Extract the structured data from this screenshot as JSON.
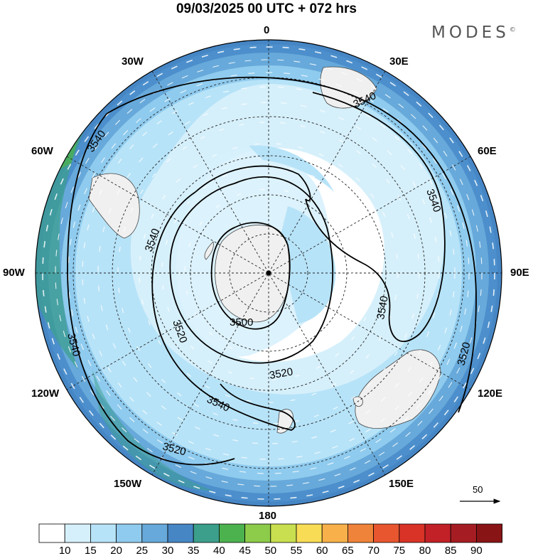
{
  "title": "09/03/2025  00 UTC  + 072 hrs",
  "brand": {
    "name": "MODES",
    "mark": "©"
  },
  "longitude_labels": {
    "lon_0": "0",
    "lon_30e": "30E",
    "lon_60e": "60E",
    "lon_90e": "90E",
    "lon_120e": "120E",
    "lon_150e": "150E",
    "lon_180": "180",
    "lon_150w": "150W",
    "lon_120w": "120W",
    "lon_90w": "90W",
    "lon_60w": "60W",
    "lon_30w": "30W"
  },
  "contour_labels": [
    "3540",
    "3540",
    "3540",
    "3540",
    "3540",
    "3540",
    "3540",
    "3520",
    "3520",
    "3520",
    "3520",
    "3500"
  ],
  "wind_reference": {
    "value": "50"
  },
  "colorbar": {
    "ticks": [
      "10",
      "15",
      "20",
      "25",
      "30",
      "35",
      "40",
      "45",
      "50",
      "55",
      "60",
      "65",
      "70",
      "75",
      "80",
      "85",
      "90"
    ],
    "colors": [
      "#ffffff",
      "#d6f0fb",
      "#b7e3f8",
      "#8fcbee",
      "#67a9da",
      "#4686c5",
      "#3c9f8c",
      "#4cb24e",
      "#8dcb4a",
      "#c9df4f",
      "#f8dc55",
      "#f7b04a",
      "#f0833a",
      "#e8562f",
      "#d93327",
      "#c22127",
      "#a51d22",
      "#881416"
    ]
  }
}
